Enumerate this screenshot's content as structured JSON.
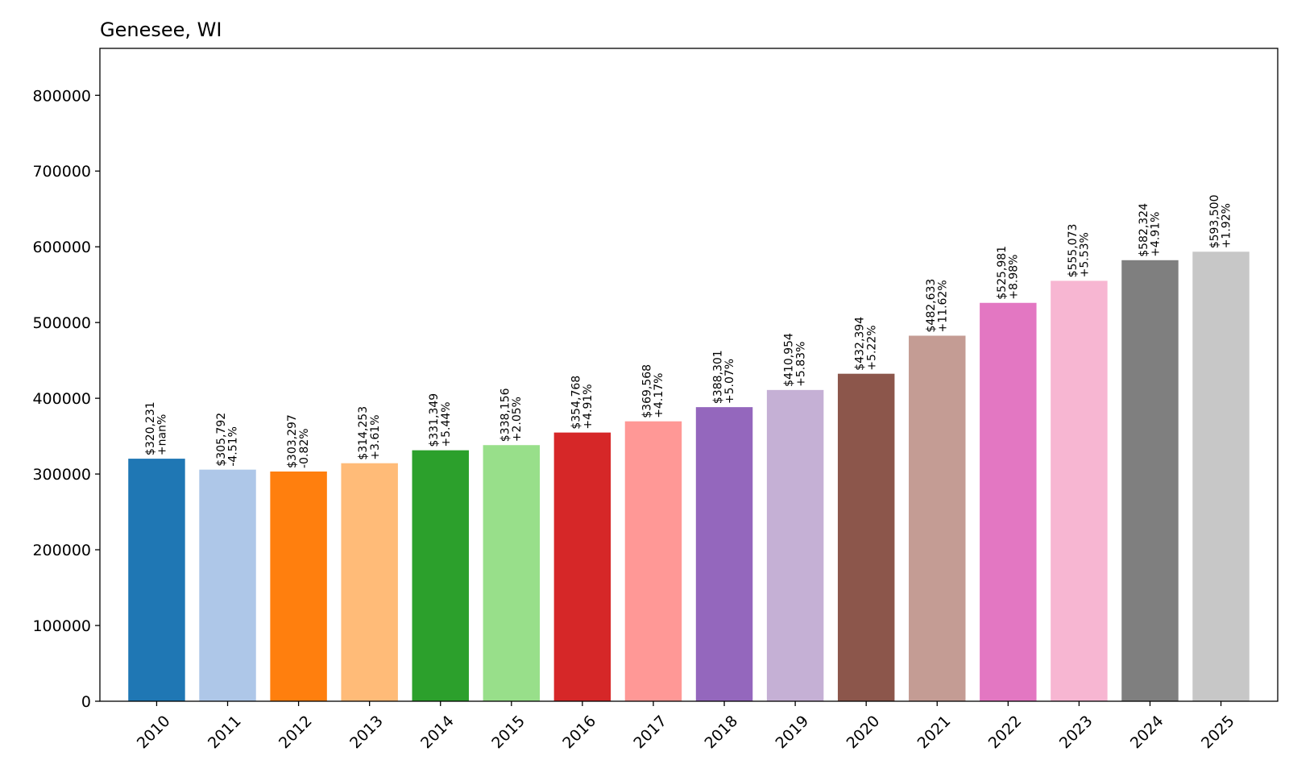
{
  "chart_data": {
    "type": "bar",
    "title": "Genesee, WI",
    "xlabel": "",
    "ylabel": "",
    "ylim": [
      0,
      862000
    ],
    "yticks": [
      0,
      100000,
      200000,
      300000,
      400000,
      500000,
      600000,
      700000,
      800000
    ],
    "grid": false,
    "legend": "none",
    "categories": [
      "2010",
      "2011",
      "2012",
      "2013",
      "2014",
      "2015",
      "2016",
      "2017",
      "2018",
      "2019",
      "2020",
      "2021",
      "2022",
      "2023",
      "2024",
      "2025"
    ],
    "values": [
      320231,
      305792,
      303297,
      314253,
      331349,
      338156,
      354768,
      369568,
      388301,
      410954,
      432394,
      482633,
      525981,
      555073,
      582324,
      593500
    ],
    "value_labels": [
      "$320,231",
      "$305,792",
      "$303,297",
      "$314,253",
      "$331,349",
      "$338,156",
      "$354,768",
      "$369,568",
      "$388,301",
      "$410,954",
      "$432,394",
      "$482,633",
      "$525,981",
      "$555,073",
      "$582,324",
      "$593,500"
    ],
    "change_labels": [
      "+nan%",
      "-4.51%",
      "-0.82%",
      "+3.61%",
      "+5.44%",
      "+2.05%",
      "+4.91%",
      "+4.17%",
      "+5.07%",
      "+5.83%",
      "+5.22%",
      "+11.62%",
      "+8.98%",
      "+5.53%",
      "+4.91%",
      "+1.92%"
    ],
    "colors": [
      "#1f77b4",
      "#aec7e8",
      "#ff7f0e",
      "#ffbb78",
      "#2ca02c",
      "#98df8a",
      "#d62728",
      "#ff9896",
      "#9467bd",
      "#c5b0d5",
      "#8c564b",
      "#c49c94",
      "#e377c2",
      "#f7b6d2",
      "#7f7f7f",
      "#c7c7c7"
    ]
  }
}
